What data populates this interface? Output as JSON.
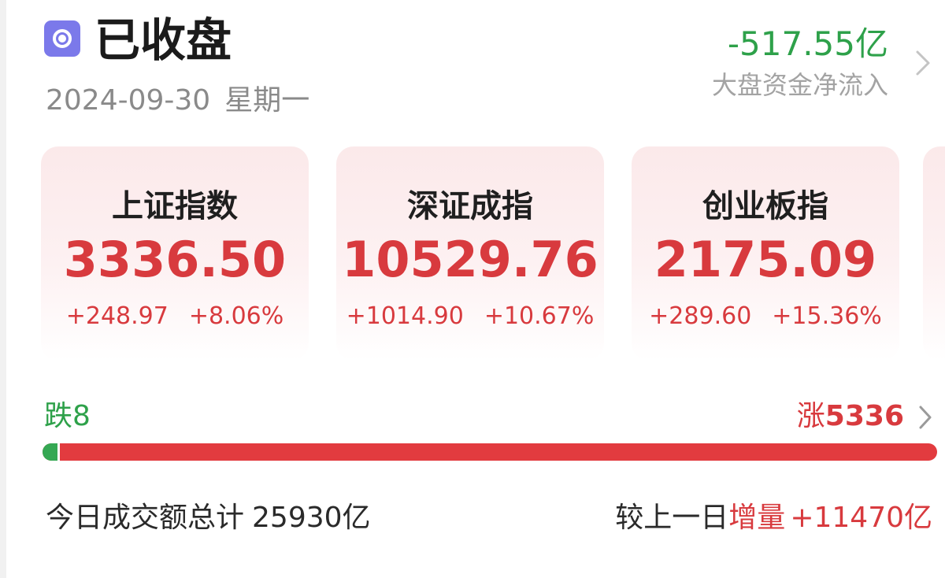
{
  "header": {
    "status_icon": "record-stop-icon",
    "status": "已收盘",
    "date": "2024-09-30",
    "weekday": "星期一",
    "flow_value": "-517.55亿",
    "flow_label": "大盘资金净流入",
    "flow_chevron": "chevron-right-icon"
  },
  "indices": [
    {
      "name": "上证指数",
      "value": "3336.50",
      "change": "+248.97",
      "percent": "+8.06%"
    },
    {
      "name": "深证成指",
      "value": "10529.76",
      "change": "+1014.90",
      "percent": "+10.67%"
    },
    {
      "name": "创业板指",
      "value": "2175.09",
      "change": "+289.60",
      "percent": "+15.36%"
    }
  ],
  "breadth": {
    "fall_label": "跌",
    "fall_count": "8",
    "rise_label": "涨",
    "rise_count": "5336",
    "fall_fraction": 0.0015,
    "rise_chevron": "chevron-right-icon"
  },
  "turnover": {
    "label": "今日成交额总计",
    "value": "25930亿",
    "compare_label": "较上一日",
    "increase_label": "增量",
    "increase_value": "+11470亿"
  },
  "colors": {
    "up": "#d83a3e",
    "down": "#2ea14a",
    "status_icon_bg": "#7b79ea",
    "card_bg": "#fbe9ea"
  }
}
